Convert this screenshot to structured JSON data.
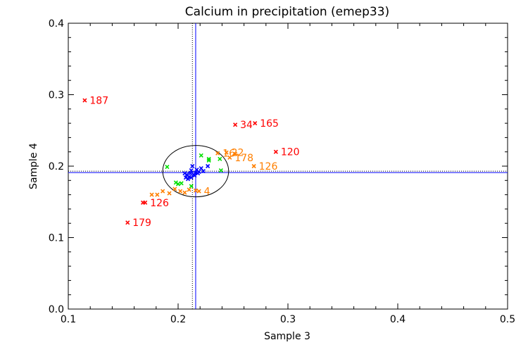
{
  "chart_data": {
    "type": "scatter",
    "title": "Calcium in precipitation (emep33)",
    "xlabel": "Sample 3",
    "ylabel": "Sample 4",
    "xlim": [
      0.1,
      0.5
    ],
    "ylim": [
      0.0,
      0.4
    ],
    "xticks": [
      0.1,
      0.2,
      0.3,
      0.4,
      0.5
    ],
    "xtick_labels": [
      "0.1",
      "0.2",
      "0.3",
      "0.4",
      "0.5"
    ],
    "yticks": [
      0.0,
      0.1,
      0.2,
      0.3,
      0.4
    ],
    "ytick_labels": [
      "0.0",
      "0.1",
      "0.2",
      "0.3",
      "0.4"
    ],
    "reference_lines": {
      "vertical_solid_x": 0.216,
      "vertical_dotted_x": 0.213,
      "horizontal_solid_y": 0.191,
      "horizontal_dotted_y": 0.193
    },
    "ellipse": {
      "cx": 0.216,
      "cy": 0.193,
      "rx": 0.03,
      "ry": 0.036
    },
    "colors": {
      "blue": "#0000ff",
      "green": "#00e000",
      "orange": "#ff7f00",
      "red": "#ff0000",
      "line": "#0000ff"
    },
    "series": [
      {
        "name": "blue",
        "color": "#0000ff",
        "points": [
          {
            "x": 0.206,
            "y": 0.19
          },
          {
            "x": 0.207,
            "y": 0.184
          },
          {
            "x": 0.208,
            "y": 0.188
          },
          {
            "x": 0.21,
            "y": 0.185
          },
          {
            "x": 0.211,
            "y": 0.19
          },
          {
            "x": 0.212,
            "y": 0.194
          },
          {
            "x": 0.213,
            "y": 0.2
          },
          {
            "x": 0.214,
            "y": 0.188
          },
          {
            "x": 0.215,
            "y": 0.187
          },
          {
            "x": 0.216,
            "y": 0.191
          },
          {
            "x": 0.217,
            "y": 0.195
          },
          {
            "x": 0.218,
            "y": 0.19
          },
          {
            "x": 0.219,
            "y": 0.192
          },
          {
            "x": 0.221,
            "y": 0.197
          },
          {
            "x": 0.223,
            "y": 0.193
          },
          {
            "x": 0.227,
            "y": 0.2
          },
          {
            "x": 0.209,
            "y": 0.182
          },
          {
            "x": 0.212,
            "y": 0.184
          }
        ]
      },
      {
        "name": "green",
        "color": "#00e000",
        "points": [
          {
            "x": 0.19,
            "y": 0.199
          },
          {
            "x": 0.198,
            "y": 0.177
          },
          {
            "x": 0.2,
            "y": 0.175
          },
          {
            "x": 0.203,
            "y": 0.176
          },
          {
            "x": 0.212,
            "y": 0.172
          },
          {
            "x": 0.221,
            "y": 0.215
          },
          {
            "x": 0.228,
            "y": 0.208
          },
          {
            "x": 0.228,
            "y": 0.21
          },
          {
            "x": 0.238,
            "y": 0.21
          },
          {
            "x": 0.239,
            "y": 0.194
          }
        ]
      },
      {
        "name": "orange",
        "color": "#ff7f00",
        "points": [
          {
            "x": 0.176,
            "y": 0.16,
            "label": ""
          },
          {
            "x": 0.181,
            "y": 0.16,
            "label": ""
          },
          {
            "x": 0.186,
            "y": 0.165,
            "label": ""
          },
          {
            "x": 0.192,
            "y": 0.162,
            "label": ""
          },
          {
            "x": 0.197,
            "y": 0.168,
            "label": ""
          },
          {
            "x": 0.202,
            "y": 0.165,
            "label": ""
          },
          {
            "x": 0.206,
            "y": 0.163,
            "label": ""
          },
          {
            "x": 0.21,
            "y": 0.167,
            "label": ""
          },
          {
            "x": 0.216,
            "y": 0.166,
            "label": ""
          },
          {
            "x": 0.219,
            "y": 0.165,
            "label": "4"
          },
          {
            "x": 0.236,
            "y": 0.218,
            "label": "16"
          },
          {
            "x": 0.244,
            "y": 0.219,
            "label": "22"
          },
          {
            "x": 0.247,
            "y": 0.212,
            "label": "178"
          },
          {
            "x": 0.252,
            "y": 0.217,
            "label": ""
          },
          {
            "x": 0.269,
            "y": 0.2,
            "label": "126"
          }
        ]
      },
      {
        "name": "red",
        "color": "#ff0000",
        "points": [
          {
            "x": 0.115,
            "y": 0.292,
            "label": "187"
          },
          {
            "x": 0.154,
            "y": 0.121,
            "label": "179"
          },
          {
            "x": 0.168,
            "y": 0.149,
            "label": ""
          },
          {
            "x": 0.17,
            "y": 0.149,
            "label": "126"
          },
          {
            "x": 0.252,
            "y": 0.258,
            "label": "34"
          },
          {
            "x": 0.27,
            "y": 0.26,
            "label": "165"
          },
          {
            "x": 0.289,
            "y": 0.22,
            "label": "120"
          }
        ]
      }
    ]
  }
}
